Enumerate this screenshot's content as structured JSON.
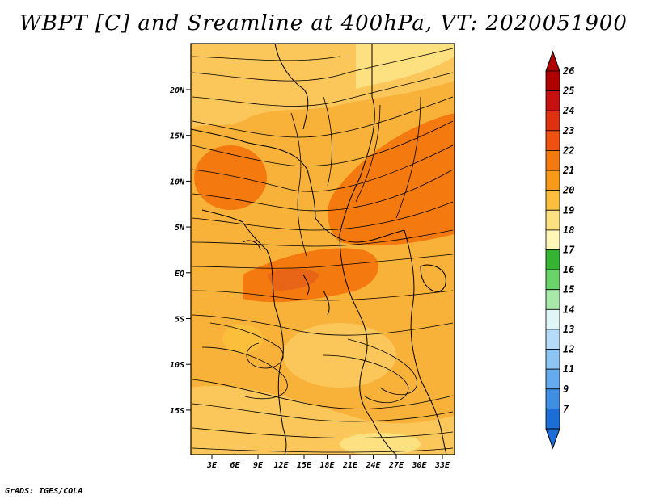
{
  "title": "WBPT [C] and Sreamline at 400hPa, VT: 2020051900",
  "footer": "GrADS: IGES/COLA",
  "map": {
    "lon_labels": [
      "3E",
      "6E",
      "9E",
      "12E",
      "15E",
      "18E",
      "21E",
      "24E",
      "27E",
      "30E",
      "33E"
    ],
    "lat_labels": [
      "20N",
      "15N",
      "10N",
      "5N",
      "EQ",
      "5S",
      "10S",
      "15S"
    ]
  },
  "colorbar": {
    "levels": [
      "26",
      "25",
      "24",
      "23",
      "22",
      "21",
      "20",
      "19",
      "18",
      "17",
      "16",
      "15",
      "14",
      "13",
      "12",
      "11",
      "9",
      "7"
    ],
    "colors": [
      "#b00000",
      "#c81010",
      "#e03010",
      "#f05010",
      "#f47a10",
      "#f89a18",
      "#fbbf3c",
      "#fde080",
      "#fff6b8",
      "#33b533",
      "#6ad36a",
      "#a8e8a8",
      "#e0f6f6",
      "#b4dcf8",
      "#8cc4f4",
      "#64aaee",
      "#3e8ee4",
      "#1c6ed6"
    ]
  }
}
